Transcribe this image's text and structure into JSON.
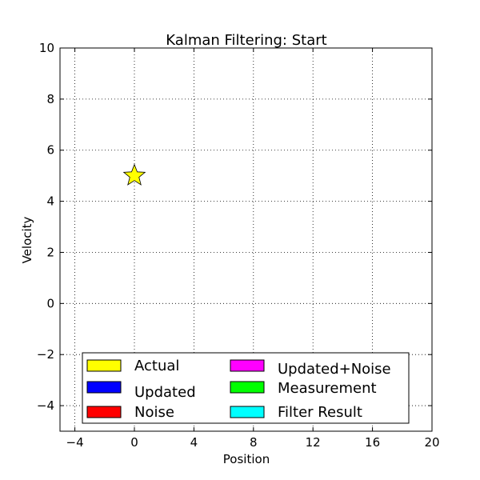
{
  "chart_data": {
    "type": "scatter",
    "title": "Kalman Filtering: Start",
    "xlabel": "Position",
    "ylabel": "Velocity",
    "xlim": [
      -5,
      20
    ],
    "ylim": [
      -5,
      10
    ],
    "x_ticks": [
      -4,
      0,
      4,
      8,
      12,
      16,
      20
    ],
    "y_ticks": [
      -4,
      -2,
      0,
      2,
      4,
      6,
      8,
      10
    ],
    "x_tick_labels": [
      "−4",
      "0",
      "4",
      "8",
      "12",
      "16",
      "20"
    ],
    "y_tick_labels": [
      "−4",
      "−2",
      "0",
      "2",
      "4",
      "6",
      "8",
      "10"
    ],
    "grid": true,
    "series": [
      {
        "name": "Actual",
        "marker": "star",
        "color": "#ffff00",
        "points": [
          {
            "x": 0,
            "y": 5
          }
        ]
      },
      {
        "name": "Updated",
        "marker": "patch",
        "color": "#0000ff",
        "points": []
      },
      {
        "name": "Noise",
        "marker": "patch",
        "color": "#ff0000",
        "points": []
      },
      {
        "name": "Updated+Noise",
        "marker": "patch",
        "color": "#ff00ff",
        "points": []
      },
      {
        "name": "Measurement",
        "marker": "patch",
        "color": "#00ff00",
        "points": []
      },
      {
        "name": "Filter Result",
        "marker": "patch",
        "color": "#00ffff",
        "points": []
      }
    ],
    "legend": {
      "placement": "bottom-center",
      "columns": 2,
      "entries": [
        {
          "label": "Actual",
          "color": "#ffff00"
        },
        {
          "label": "Updated",
          "color": "#0000ff"
        },
        {
          "label": "Noise",
          "color": "#ff0000"
        },
        {
          "label": "Updated+Noise",
          "color": "#ff00ff"
        },
        {
          "label": "Measurement",
          "color": "#00ff00"
        },
        {
          "label": "Filter Result",
          "color": "#00ffff"
        }
      ]
    }
  }
}
